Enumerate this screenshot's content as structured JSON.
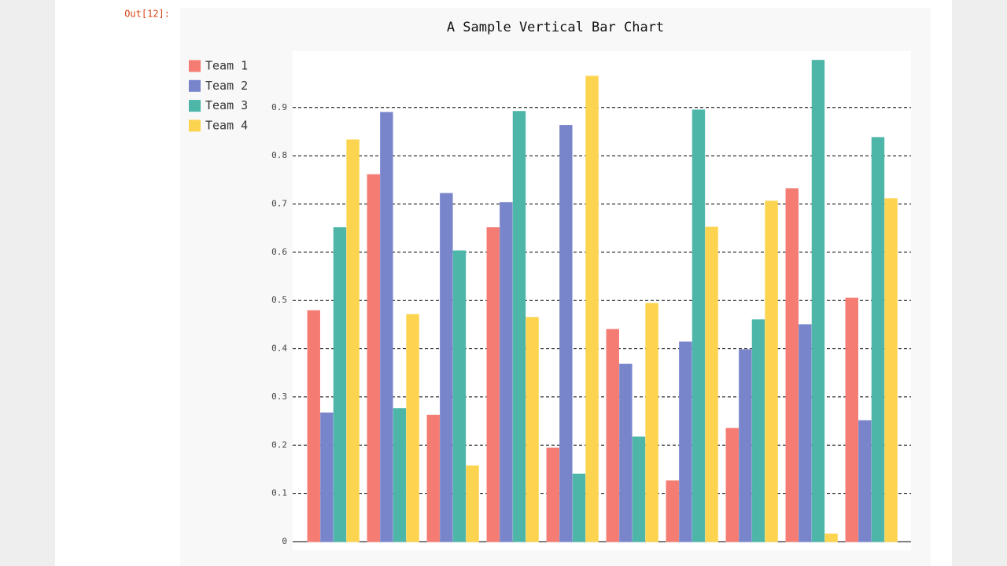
{
  "prompt": "Out[12]:",
  "chart_data": {
    "type": "bar",
    "title": "A Sample Vertical Bar Chart",
    "categories": [
      null,
      null,
      null,
      null,
      null,
      null,
      null,
      null,
      null,
      null
    ],
    "series": [
      {
        "name": "Team 1",
        "color": "#f47c72",
        "values": [
          0.479,
          0.761,
          0.262,
          0.651,
          0.194,
          0.44,
          0.126,
          0.235,
          0.732,
          0.505
        ]
      },
      {
        "name": "Team 2",
        "color": "#7985cb",
        "values": [
          0.267,
          0.89,
          0.722,
          0.703,
          0.863,
          0.368,
          0.414,
          0.398,
          0.45,
          0.251
        ]
      },
      {
        "name": "Team 3",
        "color": "#4db6a9",
        "values": [
          0.651,
          0.276,
          0.603,
          0.892,
          0.14,
          0.217,
          0.895,
          0.46,
          0.998,
          0.838
        ]
      },
      {
        "name": "Team 4",
        "color": "#fdd44f",
        "values": [
          0.833,
          0.471,
          0.157,
          0.465,
          0.965,
          0.494,
          0.652,
          0.706,
          0.016,
          0.711
        ]
      }
    ],
    "ylim": [
      0,
      1.017
    ],
    "yticks": [
      0,
      0.1,
      0.2,
      0.3,
      0.4,
      0.5,
      0.6,
      0.7,
      0.8,
      0.9
    ],
    "grid": true,
    "legend": "top-left"
  }
}
